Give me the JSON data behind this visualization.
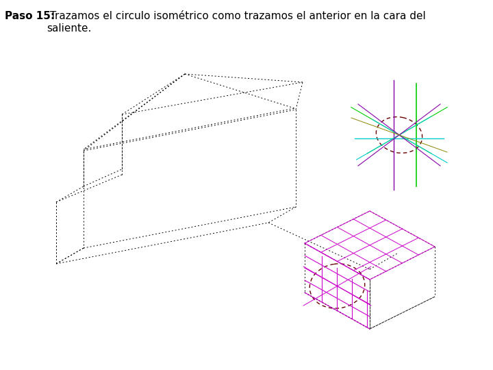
{
  "title_bold": "Paso 15:",
  "title_normal": " Trazamos el circulo isométrico como trazamos el anterior en la cara del\nsaliente.",
  "bg_color": "#ffffff",
  "line_color_main": "#000000",
  "line_color_magenta": "#cc00cc",
  "line_color_green": "#00cc00",
  "line_color_cyan": "#00cccc",
  "line_color_purple": "#8800aa",
  "line_color_darkred": "#8b0000",
  "line_color_olive": "#888800"
}
